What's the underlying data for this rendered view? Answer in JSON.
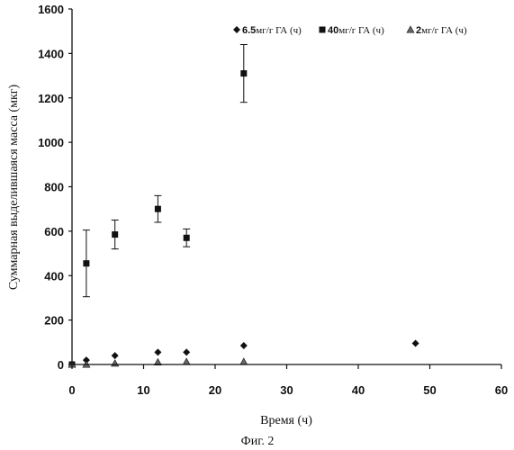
{
  "chart_data": {
    "type": "scatter",
    "xlabel": "Время (ч)",
    "ylabel": "Суммарная выделившаяся масса (мкг)",
    "xlim": [
      0,
      60
    ],
    "ylim": [
      0,
      1600
    ],
    "xticks": [
      "0",
      "10",
      "20",
      "30",
      "40",
      "50",
      "60"
    ],
    "yticks": [
      "0",
      "200",
      "400",
      "600",
      "800",
      "1000",
      "1200",
      "1400",
      "1600"
    ],
    "grid": false,
    "legend_position": "top-right",
    "series": [
      {
        "name_value": "6.5",
        "name_unit": "мг/г ГА (ч)",
        "marker": "diamond",
        "points": [
          {
            "x": 0,
            "y": 0
          },
          {
            "x": 2,
            "y": 20
          },
          {
            "x": 6,
            "y": 40
          },
          {
            "x": 12,
            "y": 55
          },
          {
            "x": 16,
            "y": 55
          },
          {
            "x": 24,
            "y": 85
          },
          {
            "x": 48,
            "y": 95
          }
        ]
      },
      {
        "name_value": "40",
        "name_unit": "мг/г ГА (ч)",
        "marker": "square",
        "points": [
          {
            "x": 0,
            "y": 0
          },
          {
            "x": 2,
            "y": 455,
            "err": 150
          },
          {
            "x": 6,
            "y": 585,
            "err": 65
          },
          {
            "x": 12,
            "y": 700,
            "err": 60
          },
          {
            "x": 16,
            "y": 570,
            "err": 40
          },
          {
            "x": 24,
            "y": 1310,
            "err": 130
          }
        ]
      },
      {
        "name_value": "2",
        "name_unit": "мг/г ГА (ч)",
        "marker": "triangle",
        "points": [
          {
            "x": 0,
            "y": 0
          },
          {
            "x": 2,
            "y": 0
          },
          {
            "x": 6,
            "y": 5
          },
          {
            "x": 12,
            "y": 10
          },
          {
            "x": 16,
            "y": 12
          },
          {
            "x": 24,
            "y": 12
          }
        ]
      }
    ]
  },
  "caption": "Фиг. 2"
}
